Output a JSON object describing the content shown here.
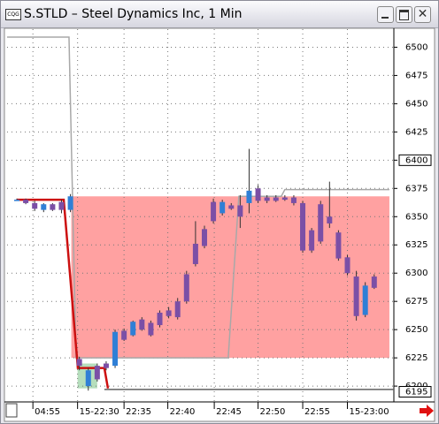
{
  "window": {
    "title": "S.STLD – Steel Dynamics Inc, 1 Min",
    "icon_text": "CQG"
  },
  "chart_data": {
    "type": "candlestick",
    "x": [
      0,
      1,
      2,
      3,
      4,
      5,
      6,
      7,
      8,
      9,
      10,
      11,
      12,
      13,
      14,
      15,
      16,
      17,
      18,
      19,
      20,
      21,
      22,
      23,
      24,
      25,
      26,
      27,
      28,
      29,
      30,
      31,
      32,
      33,
      34,
      35,
      36,
      37,
      38,
      39,
      40
    ],
    "open": [
      6365,
      6365,
      6362,
      6356,
      6361,
      6363,
      6356,
      6224,
      6200,
      6218,
      6220,
      6218,
      6249,
      6245,
      6259,
      6256,
      6265,
      6267,
      6275,
      6299,
      6326,
      6339,
      6363,
      6353,
      6360,
      6360,
      6362,
      6375,
      6367,
      6367,
      6367,
      6367,
      6362,
      6338,
      6361,
      6350,
      6336,
      6314,
      6297,
      6263,
      6297
    ],
    "high": [
      6366,
      6366,
      6364,
      6362,
      6362,
      6365,
      6370,
      6226,
      6216,
      6220,
      6222,
      6250,
      6251,
      6258,
      6261,
      6258,
      6267,
      6270,
      6278,
      6302,
      6346,
      6342,
      6366,
      6365,
      6362,
      6369,
      6410,
      6378,
      6369,
      6369,
      6369,
      6369,
      6364,
      6340,
      6364,
      6381,
      6338,
      6316,
      6302,
      6292,
      6299
    ],
    "low": [
      6364,
      6361,
      6355,
      6354,
      6355,
      6353,
      6354,
      6214,
      6196,
      6204,
      6214,
      6216,
      6240,
      6244,
      6249,
      6244,
      6252,
      6260,
      6259,
      6273,
      6306,
      6322,
      6344,
      6351,
      6356,
      6340,
      6353,
      6362,
      6362,
      6363,
      6364,
      6360,
      6318,
      6318,
      6326,
      6340,
      6311,
      6298,
      6258,
      6261,
      6286
    ],
    "close": [
      6365,
      6362,
      6357,
      6361,
      6356,
      6356,
      6368,
      6218,
      6214,
      6206,
      6216,
      6248,
      6241,
      6257,
      6250,
      6245,
      6254,
      6262,
      6261,
      6275,
      6308,
      6324,
      6346,
      6363,
      6357,
      6350,
      6373,
      6364,
      6364,
      6364,
      6365,
      6362,
      6320,
      6320,
      6328,
      6344,
      6313,
      6300,
      6262,
      6289,
      6287
    ],
    "up_color": "#2f7fd6",
    "down_color": "#7b4fa6",
    "xlim": [
      -1.09,
      42.2
    ],
    "xticks": [
      {
        "value": 1.8,
        "label": "04:55"
      },
      {
        "value": 6.8,
        "label": "15-22:30"
      },
      {
        "value": 12,
        "label": "22:35"
      },
      {
        "value": 16.9,
        "label": "22:40"
      },
      {
        "value": 22.1,
        "label": "22:45"
      },
      {
        "value": 27,
        "label": "22:50"
      },
      {
        "value": 32,
        "label": "22:55"
      },
      {
        "value": 37,
        "label": "15-23:00"
      }
    ],
    "ylim": [
      6186,
      6516
    ],
    "yticks": [
      6200,
      6225,
      6250,
      6275,
      6300,
      6325,
      6350,
      6375,
      6400,
      6425,
      6450,
      6475,
      6500
    ],
    "boxed_labels": [
      6400,
      6195
    ],
    "grid": true,
    "zone": {
      "x": [
        6.1,
        41.7
      ],
      "y": [
        6225,
        6368
      ],
      "color": "#ff8a8a"
    },
    "highlight": {
      "x": [
        6.8,
        9
      ],
      "y": [
        6198,
        6220
      ],
      "color": "#a8d8b0"
    },
    "lines": [
      {
        "color": "#a8a8a8",
        "x": [
          -1.09,
          5.84,
          6.63,
          23.66,
          24.85,
          29.6,
          30,
          41.7
        ],
        "values": [
          6509,
          6509,
          6225,
          6225,
          6368,
          6368,
          6374,
          6374
        ]
      },
      {
        "color": "#606060",
        "x": [
          9.8,
          42.2
        ],
        "values": [
          6197,
          6197
        ]
      },
      {
        "color": "#cc1010",
        "x": [
          0,
          5.25,
          6.83,
          9.8,
          10.2
        ],
        "values": [
          6365,
          6365,
          6216,
          6216,
          6198
        ]
      }
    ]
  }
}
